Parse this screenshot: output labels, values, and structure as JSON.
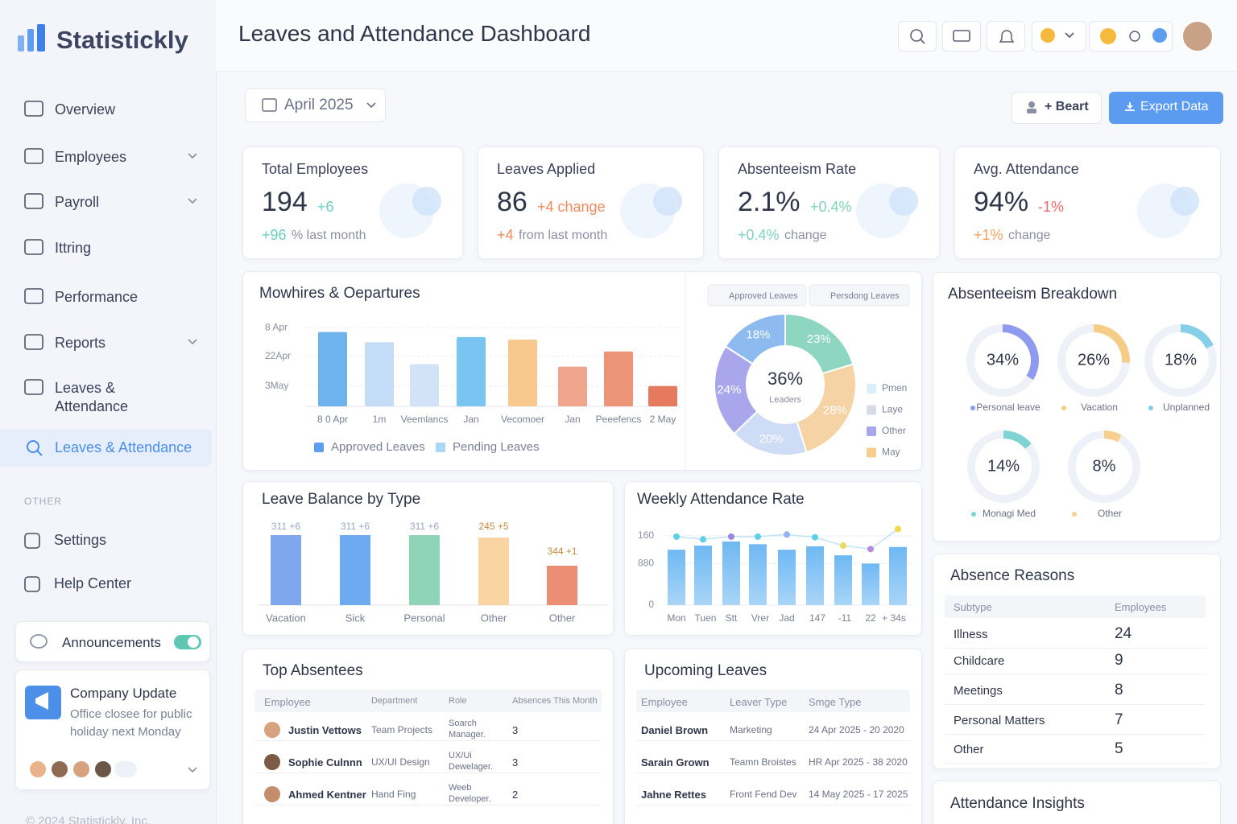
{
  "brand": "Statistickly",
  "title": "Leaves and Attendance Dashboard",
  "nav": {
    "items": [
      "Overview",
      "Employees",
      "Payroll",
      "Ittring",
      "Performance",
      "Reports",
      "Leaves & Attendance"
    ],
    "active": "Leaves & Attendance",
    "section": "OTHER",
    "other": [
      "Settings",
      "Help Center"
    ]
  },
  "announcements": "Announcements",
  "update": {
    "title": "Company Update",
    "text": "Office closee for public holiday next Monday"
  },
  "footer": "© 2024 Statistickly, Inc.",
  "date": "April 2025",
  "actions": [
    "+ Beart",
    "Export Data"
  ],
  "kpis": [
    {
      "title": "Total Employees",
      "value": "194",
      "delta": "+6",
      "sub_value": "+96",
      "sub_text": "% last month"
    },
    {
      "title": "Leaves Applied",
      "value": "86",
      "delta": "+4 change",
      "sub_value": "+4",
      "sub_text": "from last month"
    },
    {
      "title": "Absenteeism Rate",
      "value": "2.1%",
      "delta": "+0.4%",
      "sub_value": "+0.4%",
      "sub_text": "change"
    },
    {
      "title": "Avg. Attendance",
      "value": "94%",
      "delta": "-1%",
      "sub_value": "+1%",
      "sub_text": "change"
    }
  ],
  "hires_chart": {
    "type": "bar",
    "title": "Mowhires & Oepartures",
    "categories": [
      "8 0 Apr",
      "1m",
      "Veemlancs",
      "Jan",
      "Vecomoer",
      "Jan",
      "Peeefencs",
      "2 May"
    ],
    "values": [
      88,
      76,
      50,
      82,
      79,
      47,
      65,
      24
    ],
    "colors": [
      "#6fb3ec",
      "#c5dcf6",
      "#d3e3f7",
      "#79c4f0",
      "#f8c98f",
      "#f0a68c",
      "#ec9478",
      "#e57a5f"
    ],
    "ylim": [
      0,
      100
    ],
    "yticks": [
      {
        "value": 93,
        "label": "8 Apr"
      },
      {
        "value": 59,
        "label": "22Apr"
      },
      {
        "value": 24,
        "label": "3May"
      }
    ],
    "legend": [
      {
        "name": "Approved Leaves",
        "color": "#5b9ef0"
      },
      {
        "name": "Pending Leaves",
        "color": "#a8d8f5"
      }
    ]
  },
  "leave_share": {
    "type": "pie",
    "tabs": [
      "Approved Leaves",
      "Persdong Leaves"
    ],
    "center_value": "36%",
    "center_label": "Leaders",
    "values": [
      23,
      28,
      20,
      24,
      18
    ],
    "value_labels": [
      "23%",
      "28%",
      "20%",
      "24%",
      "18%"
    ],
    "colors": [
      "#8fd6c0",
      "#f6d3a4",
      "#cfdcf6",
      "#a9a6ec",
      "#8dbbf0"
    ],
    "legend": [
      {
        "name": "Pmen",
        "color": "#dceefa"
      },
      {
        "name": "Laye",
        "color": "#d9dbe4"
      },
      {
        "name": "Other",
        "color": "#a9a6ec"
      },
      {
        "name": "May",
        "color": "#f6cf8f"
      }
    ]
  },
  "breakdown": {
    "type": "donut",
    "title": "Absenteeism Breakdown",
    "labels": [
      "Personal leave",
      "Vacation",
      "Unplanned",
      "Monagi Med",
      "Other"
    ],
    "values": [
      34,
      26,
      18,
      14,
      8
    ],
    "value_labels": [
      "34%",
      "26%",
      "18%",
      "14%",
      "8%"
    ],
    "colors": [
      "#8e9bee",
      "#f5cd86",
      "#86cfe8",
      "#7fd3d3",
      "#f7cf8e"
    ]
  },
  "leave_balance": {
    "type": "bar",
    "title": "Leave Balance by Type",
    "categories": [
      "Vacation",
      "Sick",
      "Personal",
      "Other",
      "Other"
    ],
    "values": [
      87,
      87,
      87,
      84,
      49
    ],
    "ylim": [
      0,
      100
    ],
    "annotations": [
      "311 +6",
      "311 +6",
      "311 +6",
      "245 +5",
      "344 +1"
    ],
    "colors": [
      "#7ea7ee",
      "#6eaaf0",
      "#8fd4b9",
      "#f8d5a2",
      "#eb8f74"
    ]
  },
  "weekly": {
    "type": "bar_line",
    "title": "Weekly Attendance Rate",
    "categories": [
      "Mon",
      "Tuen",
      "Stt",
      "Vrer",
      "Jad",
      "147",
      "-11",
      "22",
      "+ 34s"
    ],
    "ylim": [
      0,
      115
    ],
    "yticks": [
      {
        "value": 100,
        "label": "160"
      },
      {
        "value": 60,
        "label": "880"
      },
      0
    ],
    "series": [
      {
        "name": "Attendance",
        "color": "#66b3f2",
        "values": [
          80,
          86,
          92,
          88,
          80,
          85,
          72,
          60,
          84
        ]
      },
      {
        "name": "Rate",
        "color": "#bfe3f5",
        "values": [
          99,
          95,
          99,
          99,
          102,
          98,
          86,
          81,
          110
        ],
        "marker_colors": [
          "#5fd0e8",
          "#5fd0e8",
          "#9a86e0",
          "#5fd0e8",
          "#8fb4f0",
          "#5fd0e8",
          "#e8dc5a",
          "#b68ae0",
          "#f0d94a"
        ]
      }
    ]
  },
  "top_absentees": {
    "title": "Top Absentees",
    "columns": [
      "Employee",
      "Department",
      "Role",
      "Absences This Month"
    ],
    "rows": [
      [
        "Justin Vettows",
        "Team Projects",
        "Soarch Manager.",
        "3"
      ],
      [
        "Sophie Culnnn",
        "UX/UI Design",
        "UX/Ui Dewelager.",
        "3"
      ],
      [
        "Ahmed Kentner",
        "Hand Fing",
        "Weeb Developer.",
        "2"
      ]
    ]
  },
  "upcoming": {
    "title": "Upcoming Leaves",
    "columns": [
      "Employee",
      "Leaver Type",
      "Smge Type"
    ],
    "rows": [
      [
        "Daniel Brown",
        "Marketing",
        "24 Apr 2025 - 20 2020"
      ],
      [
        "Sarain Grown",
        "Teamn Broistes",
        "HR Apr 2025 - 38 2020"
      ],
      [
        "Jahne Rettes",
        "Front Fend Dev",
        "14 May 2025 - 17 2025"
      ]
    ]
  },
  "reasons": {
    "title": "Absence Reasons",
    "columns": [
      "Subtype",
      "Employees"
    ],
    "rows": [
      [
        "Illness",
        "24"
      ],
      [
        "Childcare",
        "9"
      ],
      [
        "Meetings",
        "8"
      ],
      [
        "Personal Matters",
        "7"
      ],
      [
        "Other",
        "5"
      ]
    ]
  },
  "insights": {
    "title": "Attendance Insights"
  }
}
